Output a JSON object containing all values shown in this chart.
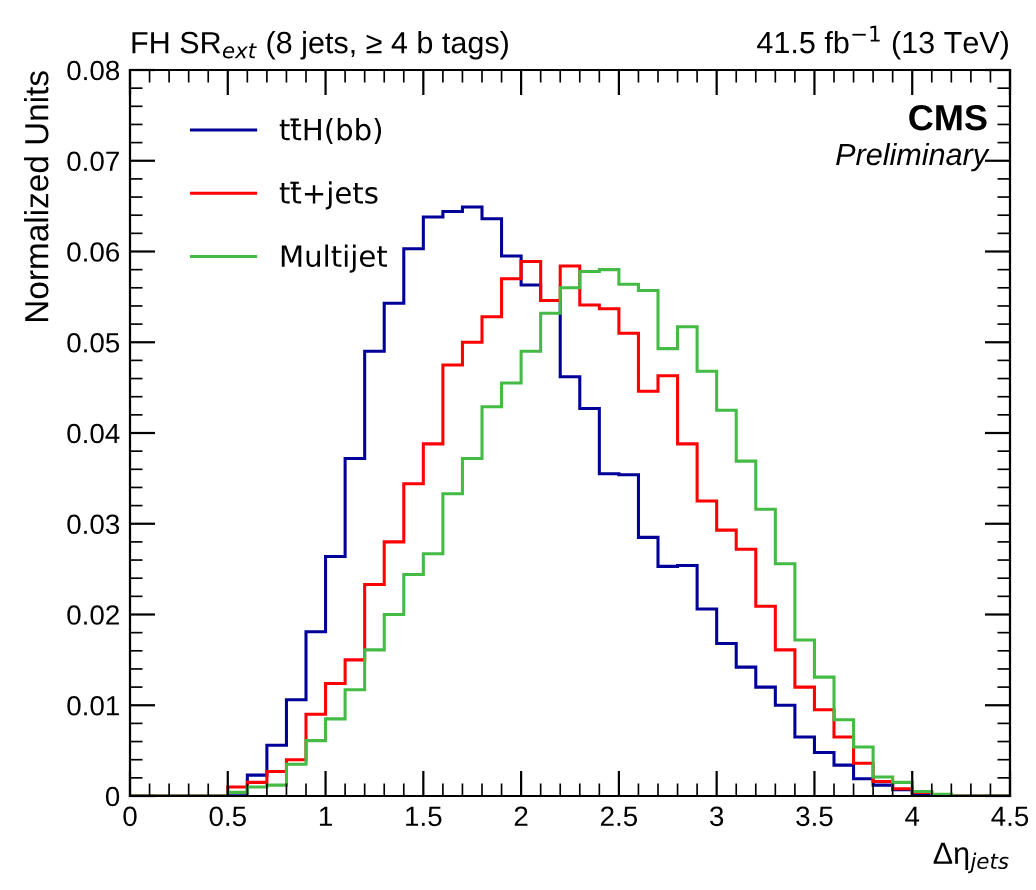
{
  "chart_data": {
    "type": "histogram",
    "title": "FH SR$_{ext}$ (8 jets, ≥ 4 b tags)",
    "subtitle": "41.5 fb$^{−1}$ (13 TeV)",
    "xlabel": "Δη$_{jets}$",
    "ylabel": "Normalized Units",
    "annotations": [
      "CMS",
      "Preliminary"
    ],
    "bins": [
      0,
      0.1,
      0.2,
      0.3,
      0.4,
      0.5,
      0.6,
      0.7,
      0.8,
      0.9,
      1.0,
      1.1,
      1.2,
      1.3,
      1.4,
      1.5,
      1.6,
      1.7,
      1.8,
      1.9,
      2.0,
      2.1,
      2.2,
      2.3,
      2.4,
      2.5,
      2.6,
      2.7,
      2.8,
      2.9,
      3.0,
      3.1,
      3.2,
      3.3,
      3.4,
      3.5,
      3.6,
      3.7,
      3.8,
      3.9,
      4.0,
      4.1,
      4.2,
      4.3,
      4.4,
      4.5
    ],
    "series": [
      {
        "name": "tt̄H(bb)",
        "color": "#000099",
        "values": [
          0,
          0,
          0,
          0,
          0,
          0.0003,
          0.0023,
          0.0056,
          0.0106,
          0.0181,
          0.0264,
          0.0372,
          0.049,
          0.0543,
          0.0603,
          0.0638,
          0.0644,
          0.0649,
          0.0636,
          0.0595,
          0.0563,
          0.0546,
          0.0462,
          0.0427,
          0.0355,
          0.0354,
          0.0285,
          0.0253,
          0.0254,
          0.0206,
          0.0168,
          0.0142,
          0.012,
          0.01,
          0.0065,
          0.0048,
          0.0034,
          0.0019,
          0.0012,
          0.0007,
          0.0002,
          0,
          0,
          0,
          0
        ]
      },
      {
        "name": "tt̄+jets",
        "color": "#ff0000",
        "values": [
          0,
          0,
          0,
          0,
          0,
          0.001,
          0.0015,
          0.0027,
          0.004,
          0.009,
          0.0124,
          0.015,
          0.0233,
          0.028,
          0.0344,
          0.0388,
          0.0475,
          0.05,
          0.0528,
          0.057,
          0.0589,
          0.0546,
          0.0584,
          0.0541,
          0.0537,
          0.051,
          0.0446,
          0.0463,
          0.0388,
          0.0325,
          0.0293,
          0.0272,
          0.0209,
          0.0161,
          0.012,
          0.0095,
          0.0065,
          0.0036,
          0.0016,
          0.0008,
          0.0004,
          0.0001,
          0,
          0,
          0
        ]
      },
      {
        "name": "Multijet",
        "color": "#44bb44",
        "values": [
          0,
          0,
          0,
          0,
          0,
          0.0004,
          0.001,
          0.0012,
          0.0035,
          0.0061,
          0.0085,
          0.0117,
          0.0161,
          0.02,
          0.0244,
          0.0267,
          0.0333,
          0.0372,
          0.0429,
          0.0455,
          0.049,
          0.0532,
          0.056,
          0.0578,
          0.058,
          0.0564,
          0.0557,
          0.0493,
          0.0517,
          0.0468,
          0.0425,
          0.0369,
          0.0316,
          0.0256,
          0.0172,
          0.0131,
          0.0084,
          0.0054,
          0.0021,
          0.0015,
          0.0005,
          0.0002,
          0,
          0,
          0
        ]
      }
    ],
    "xlim": [
      0,
      4.5
    ],
    "xticks": [
      0,
      0.5,
      1,
      1.5,
      2,
      2.5,
      3,
      3.5,
      4,
      4.5
    ],
    "ylim": [
      0,
      0.08
    ],
    "yticks": [
      0,
      0.01,
      0.02,
      0.03,
      0.04,
      0.05,
      0.06,
      0.07,
      0.08
    ],
    "legend": "top left",
    "grid": false
  }
}
